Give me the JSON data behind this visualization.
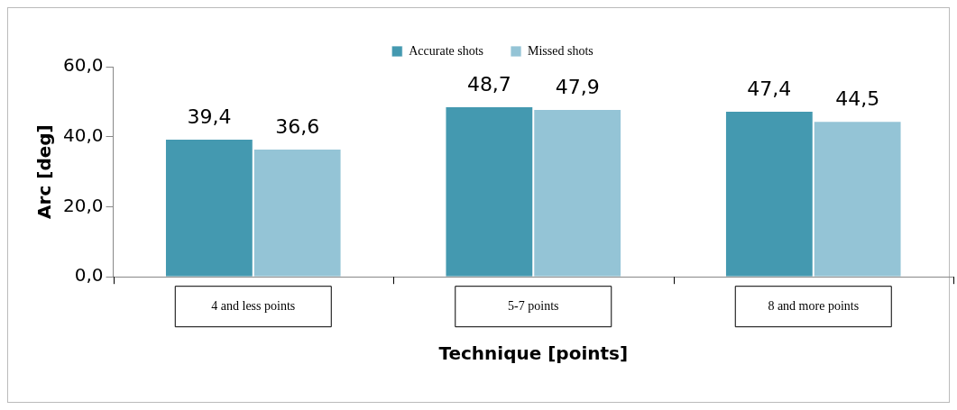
{
  "chart_data": {
    "type": "bar",
    "xlabel": "Technique [points]",
    "ylabel": "Arc [deg]",
    "categories": [
      "4 and less points",
      "5-7 points",
      "8 and more points"
    ],
    "series": [
      {
        "name": "Accurate shots",
        "color": "#4499b0",
        "values": [
          39.4,
          48.7,
          47.4
        ],
        "value_labels": [
          "39,4",
          "48,7",
          "47,4"
        ]
      },
      {
        "name": "Missed shots",
        "color": "#94c4d6",
        "values": [
          36.6,
          47.9,
          44.5
        ],
        "value_labels": [
          "36,6",
          "47,9",
          "44,5"
        ]
      }
    ],
    "ylim": [
      0,
      60
    ],
    "yticks": [
      {
        "value": 0,
        "label": "0,0"
      },
      {
        "value": 20,
        "label": "20,0"
      },
      {
        "value": 40,
        "label": "40,0"
      },
      {
        "value": 60,
        "label": "60,0"
      }
    ],
    "grid": false,
    "legend": "top"
  }
}
